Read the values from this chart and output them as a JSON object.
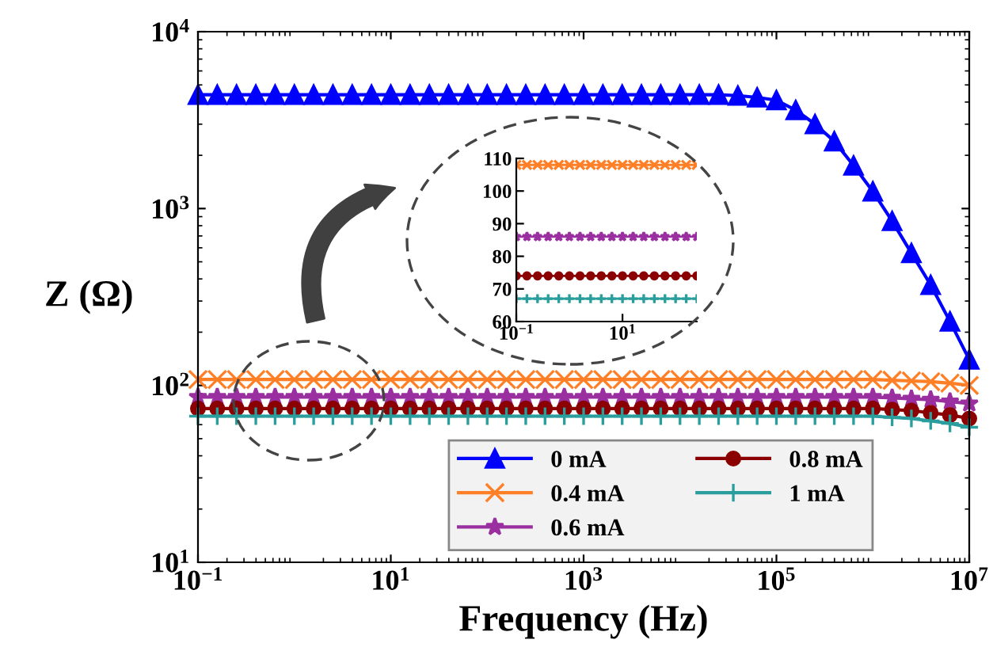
{
  "chart_data": [
    {
      "type": "line",
      "xlabel": "Frequency (Hz)",
      "ylabel": "Z (Ω)",
      "log": "xy",
      "grid": false,
      "legend": "bottom",
      "xlim": [
        0.1,
        10000000
      ],
      "ylim": [
        10,
        10000
      ],
      "xticks": [
        {
          "value": 0.1,
          "label": "10$^{−1}$"
        },
        {
          "value": 10,
          "label": "10$^{1}$"
        },
        {
          "value": 1000,
          "label": "10$^{3}$"
        },
        {
          "value": 100000,
          "label": "10$^{5}$"
        },
        {
          "value": 10000000,
          "label": "10$^{7}$"
        }
      ],
      "yticks": [
        {
          "value": 10,
          "label": "10$^{1}$"
        },
        {
          "value": 100,
          "label": "10$^{2}$"
        },
        {
          "value": 1000,
          "label": "10$^{3}$"
        },
        {
          "value": 10000,
          "label": "10$^{4}$"
        }
      ],
      "x": [
        0.1,
        0.1585,
        0.2512,
        0.3981,
        0.631,
        1,
        1.585,
        2.512,
        3.981,
        6.31,
        10,
        15.85,
        25.12,
        39.81,
        63.1,
        100,
        158.5,
        251.2,
        398.1,
        631,
        1000,
        1585,
        2512,
        3981,
        6310,
        10000,
        15850,
        25120,
        39810,
        63100,
        100000,
        158500,
        251200,
        398100,
        631000,
        1000000,
        1585000,
        2512000,
        3981000,
        6310000,
        10000000
      ],
      "series": [
        {
          "name": "0 mA",
          "color": "#0000ff",
          "marker": "triangle",
          "values": [
            4400,
            4400,
            4400,
            4400,
            4400,
            4400,
            4400,
            4400,
            4400,
            4400,
            4400,
            4400,
            4400,
            4400,
            4400,
            4400,
            4400,
            4400,
            4400,
            4400,
            4400,
            4400,
            4400,
            4400,
            4400,
            4400,
            4400,
            4400,
            4350,
            4250,
            4100,
            3600,
            3000,
            2400,
            1750,
            1250,
            850,
            560,
            370,
            230,
            140
          ]
        },
        {
          "name": "0.4 mA",
          "color": "#ff7f27",
          "marker": "cross",
          "values": [
            108,
            108,
            108,
            108,
            108,
            108,
            108,
            108,
            108,
            108,
            108,
            108,
            108,
            108,
            108,
            108,
            108,
            108,
            108,
            108,
            108,
            108,
            108,
            108,
            108,
            108,
            108,
            108,
            108,
            108,
            108,
            108,
            108,
            108,
            108,
            108,
            107,
            106,
            105,
            103,
            100
          ]
        },
        {
          "name": "0.6 mA",
          "color": "#9a2fa0",
          "marker": "star",
          "values": [
            86,
            86,
            86,
            86,
            86,
            86,
            86,
            86,
            86,
            86,
            86,
            86,
            86,
            86,
            86,
            86,
            86,
            86,
            86,
            86,
            86,
            86,
            86,
            86,
            86,
            86,
            86,
            86,
            86,
            86,
            86,
            86,
            86,
            86,
            86,
            86,
            85,
            84,
            83,
            81,
            79
          ]
        },
        {
          "name": "0.8 mA",
          "color": "#8b0000",
          "marker": "circle",
          "values": [
            74,
            74,
            74,
            74,
            74,
            74,
            74,
            74,
            74,
            74,
            74,
            74,
            74,
            74,
            74,
            74,
            74,
            74,
            74,
            74,
            74,
            74,
            74,
            74,
            74,
            74,
            74,
            74,
            74,
            74,
            74,
            74,
            74,
            74,
            74,
            74,
            73,
            72,
            70,
            68,
            65
          ]
        },
        {
          "name": "1 mA",
          "color": "#2a9d9d",
          "marker": "plus",
          "values": [
            67,
            67,
            67,
            67,
            67,
            67,
            67,
            67,
            67,
            67,
            67,
            67,
            67,
            67,
            67,
            67,
            67,
            67,
            67,
            67,
            67,
            67,
            67,
            67,
            67,
            67,
            67,
            67,
            67,
            67,
            67,
            67,
            67,
            67,
            67,
            67,
            66,
            65,
            63,
            61,
            58
          ]
        }
      ]
    },
    {
      "type": "line",
      "grid": false,
      "log": "x",
      "xlim": [
        0.1,
        251.2
      ],
      "ylim": [
        60,
        110
      ],
      "xticks": [
        {
          "value": 0.1,
          "label": "10$^{−1}$"
        },
        {
          "value": 10,
          "label": "10$^{1}$"
        }
      ],
      "yticks": [
        60,
        70,
        80,
        90,
        100,
        110
      ],
      "x": [
        0.1,
        0.1585,
        0.2512,
        0.3981,
        0.631,
        1,
        1.585,
        2.512,
        3.981,
        6.31,
        10,
        15.85,
        25.12,
        39.81,
        63.1,
        100,
        158.5,
        251.2
      ],
      "series": [
        {
          "color": "#ff7f27",
          "marker": "cross",
          "values": [
            108,
            108,
            108,
            108,
            108,
            108,
            108,
            108,
            108,
            108,
            108,
            108,
            108,
            108,
            108,
            108,
            108,
            108
          ]
        },
        {
          "color": "#9a2fa0",
          "marker": "star",
          "values": [
            86,
            86,
            86,
            86,
            86,
            86,
            86,
            86,
            86,
            86,
            86,
            86,
            86,
            86,
            86,
            86,
            86,
            86
          ]
        },
        {
          "color": "#8b0000",
          "marker": "circle",
          "values": [
            74,
            74,
            74,
            74,
            74,
            74,
            74,
            74,
            74,
            74,
            74,
            74,
            74,
            74,
            74,
            74,
            74,
            74
          ]
        },
        {
          "color": "#2a9d9d",
          "marker": "plus",
          "values": [
            67,
            67,
            67,
            67,
            67,
            67,
            67,
            67,
            67,
            67,
            67,
            67,
            67,
            67,
            67,
            67,
            67,
            67
          ]
        }
      ]
    }
  ]
}
